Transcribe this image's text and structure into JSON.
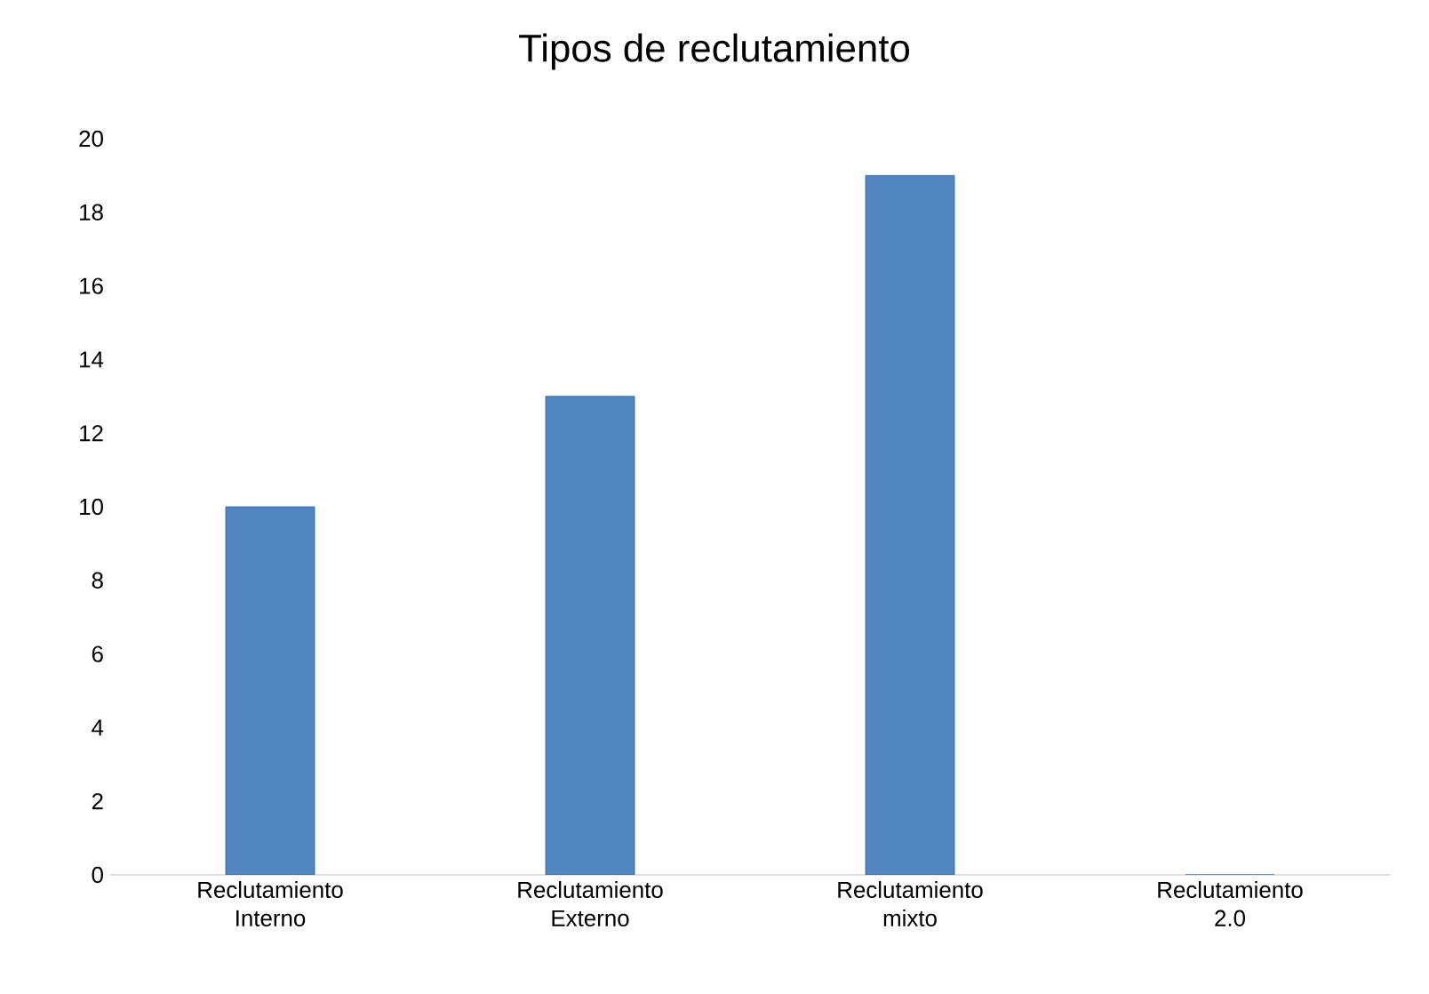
{
  "chart_data": {
    "type": "bar",
    "title": "Tipos de reclutamiento",
    "categories": [
      "Reclutamiento Interno",
      "Reclutamiento Externo",
      "Reclutamiento mixto",
      "Reclutamiento 2.0"
    ],
    "values": [
      10,
      13,
      19,
      0
    ],
    "color": "#4f86c0",
    "ylim": [
      0,
      20
    ],
    "yticks": [
      0,
      2,
      4,
      6,
      8,
      10,
      12,
      14,
      16,
      18,
      20
    ]
  }
}
